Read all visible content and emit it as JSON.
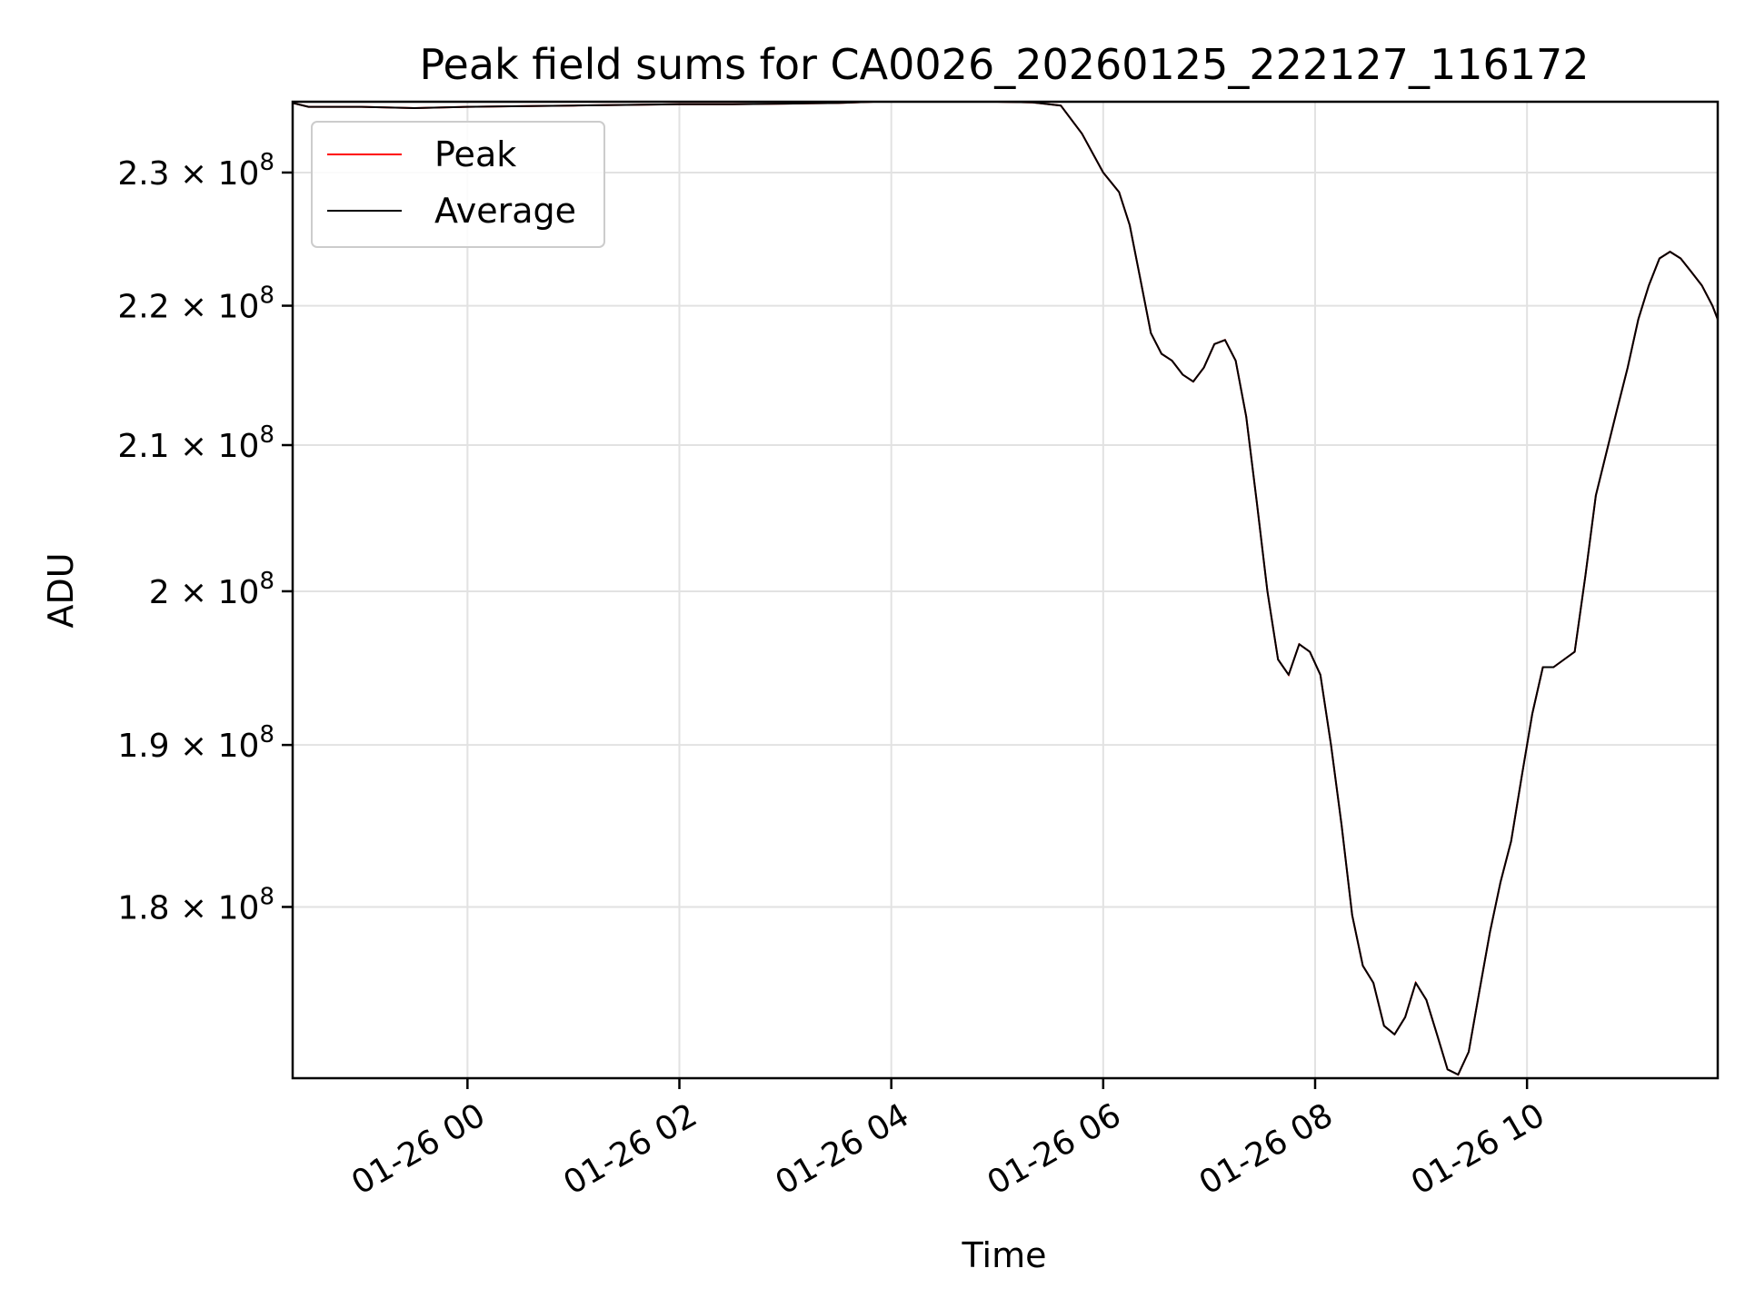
{
  "chart_data": {
    "type": "line",
    "title": "Peak field sums for CA0026_20260125_222127_116172",
    "xlabel": "Time",
    "ylabel": "ADU",
    "yscale": "log",
    "grid": true,
    "legend_position": "upper-left",
    "xlim": [
      "2026-01-25 22:21",
      "2026-01-26 11:48"
    ],
    "ylim": [
      170000000,
      235500000
    ],
    "x_ticks": [
      {
        "t": "2026-01-26 00:00",
        "label": "01-26 00"
      },
      {
        "t": "2026-01-26 02:00",
        "label": "01-26 02"
      },
      {
        "t": "2026-01-26 04:00",
        "label": "01-26 04"
      },
      {
        "t": "2026-01-26 06:00",
        "label": "01-26 06"
      },
      {
        "t": "2026-01-26 08:00",
        "label": "01-26 08"
      },
      {
        "t": "2026-01-26 10:00",
        "label": "01-26 10"
      }
    ],
    "y_ticks": [
      {
        "v": 180000000,
        "mant": "1.8",
        "exp": "8"
      },
      {
        "v": 190000000,
        "mant": "1.9",
        "exp": "8"
      },
      {
        "v": 200000000,
        "mant": "2",
        "exp": "8"
      },
      {
        "v": 210000000,
        "mant": "2.1",
        "exp": "8"
      },
      {
        "v": 220000000,
        "mant": "2.2",
        "exp": "8"
      },
      {
        "v": 230000000,
        "mant": "2.3",
        "exp": "8"
      }
    ],
    "series": [
      {
        "name": "Average",
        "color": "#000000",
        "points": [
          [
            "2026-01-25 22:21",
            235400000
          ],
          [
            "2026-01-25 22:30",
            235100000
          ],
          [
            "2026-01-25 23:00",
            235100000
          ],
          [
            "2026-01-25 23:30",
            235000000
          ],
          [
            "2026-01-26 00:00",
            235100000
          ],
          [
            "2026-01-26 00:30",
            235150000
          ],
          [
            "2026-01-26 01:00",
            235200000
          ],
          [
            "2026-01-26 01:30",
            235250000
          ],
          [
            "2026-01-26 02:00",
            235300000
          ],
          [
            "2026-01-26 02:30",
            235300000
          ],
          [
            "2026-01-26 03:00",
            235350000
          ],
          [
            "2026-01-26 03:30",
            235400000
          ],
          [
            "2026-01-26 03:50",
            235500000
          ],
          [
            "2026-01-26 04:30",
            235500000
          ],
          [
            "2026-01-26 05:00",
            235500000
          ],
          [
            "2026-01-26 05:20",
            235450000
          ],
          [
            "2026-01-26 05:36",
            235200000
          ],
          [
            "2026-01-26 05:48",
            233000000
          ],
          [
            "2026-01-26 06:00",
            230000000
          ],
          [
            "2026-01-26 06:09",
            228500000
          ],
          [
            "2026-01-26 06:15",
            226000000
          ],
          [
            "2026-01-26 06:21",
            222000000
          ],
          [
            "2026-01-26 06:27",
            218000000
          ],
          [
            "2026-01-26 06:33",
            216500000
          ],
          [
            "2026-01-26 06:39",
            216000000
          ],
          [
            "2026-01-26 06:45",
            215000000
          ],
          [
            "2026-01-26 06:51",
            214500000
          ],
          [
            "2026-01-26 06:57",
            215500000
          ],
          [
            "2026-01-26 07:03",
            217200000
          ],
          [
            "2026-01-26 07:09",
            217500000
          ],
          [
            "2026-01-26 07:15",
            216000000
          ],
          [
            "2026-01-26 07:21",
            212000000
          ],
          [
            "2026-01-26 07:27",
            206000000
          ],
          [
            "2026-01-26 07:33",
            200000000
          ],
          [
            "2026-01-26 07:39",
            195500000
          ],
          [
            "2026-01-26 07:45",
            194500000
          ],
          [
            "2026-01-26 07:51",
            196500000
          ],
          [
            "2026-01-26 07:57",
            196000000
          ],
          [
            "2026-01-26 08:03",
            194500000
          ],
          [
            "2026-01-26 08:09",
            190000000
          ],
          [
            "2026-01-26 08:15",
            185000000
          ],
          [
            "2026-01-26 08:21",
            179500000
          ],
          [
            "2026-01-26 08:27",
            176500000
          ],
          [
            "2026-01-26 08:33",
            175500000
          ],
          [
            "2026-01-26 08:39",
            173000000
          ],
          [
            "2026-01-26 08:45",
            172500000
          ],
          [
            "2026-01-26 08:51",
            173500000
          ],
          [
            "2026-01-26 08:57",
            175500000
          ],
          [
            "2026-01-26 09:03",
            174500000
          ],
          [
            "2026-01-26 09:09",
            172500000
          ],
          [
            "2026-01-26 09:15",
            170500000
          ],
          [
            "2026-01-26 09:21",
            170200000
          ],
          [
            "2026-01-26 09:27",
            171500000
          ],
          [
            "2026-01-26 09:33",
            175000000
          ],
          [
            "2026-01-26 09:39",
            178500000
          ],
          [
            "2026-01-26 09:45",
            181500000
          ],
          [
            "2026-01-26 09:51",
            184000000
          ],
          [
            "2026-01-26 09:57",
            188000000
          ],
          [
            "2026-01-26 10:03",
            192000000
          ],
          [
            "2026-01-26 10:09",
            195000000
          ],
          [
            "2026-01-26 10:15",
            195000000
          ],
          [
            "2026-01-26 10:21",
            195500000
          ],
          [
            "2026-01-26 10:27",
            196000000
          ],
          [
            "2026-01-26 10:33",
            201000000
          ],
          [
            "2026-01-26 10:39",
            206500000
          ],
          [
            "2026-01-26 10:45",
            209500000
          ],
          [
            "2026-01-26 10:51",
            212500000
          ],
          [
            "2026-01-26 10:57",
            215500000
          ],
          [
            "2026-01-26 11:03",
            219000000
          ],
          [
            "2026-01-26 11:09",
            221500000
          ],
          [
            "2026-01-26 11:15",
            223500000
          ],
          [
            "2026-01-26 11:21",
            224000000
          ],
          [
            "2026-01-26 11:27",
            223500000
          ],
          [
            "2026-01-26 11:33",
            222500000
          ],
          [
            "2026-01-26 11:39",
            221500000
          ],
          [
            "2026-01-26 11:45",
            220000000
          ],
          [
            "2026-01-26 11:48",
            219000000
          ]
        ]
      },
      {
        "name": "Peak",
        "color": "#ff0000",
        "points": []
      }
    ]
  }
}
